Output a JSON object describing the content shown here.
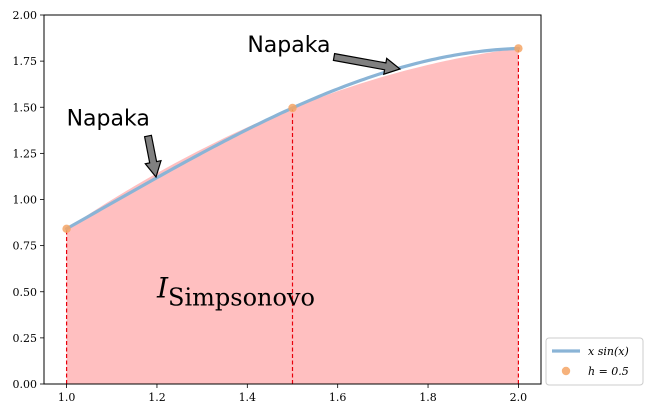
{
  "chart_data": {
    "type": "line",
    "xlim": [
      0.95,
      2.05
    ],
    "ylim": [
      0.0,
      2.0
    ],
    "x_ticks": [
      "1.0",
      "1.2",
      "1.4",
      "1.6",
      "1.8",
      "2.0"
    ],
    "x_tick_values": [
      1.0,
      1.2,
      1.4,
      1.6,
      1.8,
      2.0
    ],
    "y_ticks": [
      "0.00",
      "0.25",
      "0.50",
      "0.75",
      "1.00",
      "1.25",
      "1.50",
      "1.75",
      "2.00"
    ],
    "y_tick_values": [
      0.0,
      0.25,
      0.5,
      0.75,
      1.0,
      1.25,
      1.5,
      1.75,
      2.0
    ],
    "grid": false,
    "series": [
      {
        "name": "x sin(x)",
        "kind": "line",
        "color": "#8ab4d6",
        "x_range": [
          1.0,
          2.0
        ]
      },
      {
        "name": "h = 0.5",
        "kind": "scatter",
        "color": "#f5a565",
        "x": [
          1.0,
          1.5,
          2.0
        ],
        "y": [
          0.841,
          1.496,
          1.819
        ]
      }
    ],
    "simpson_fill_color": "#ffbfc0",
    "node_line_color": "#e8000b",
    "region_label": {
      "symbol": "I",
      "subscript": "Simpsonovo",
      "x": 1.2,
      "y": 0.47
    },
    "annotations": [
      {
        "text": "Napaka",
        "text_x": 1.0,
        "text_y": 1.4,
        "arrow_to_x": 1.2,
        "arrow_to_y": 1.11
      },
      {
        "text": "Napaka",
        "text_x": 1.4,
        "text_y": 1.8,
        "arrow_to_x": 1.75,
        "arrow_to_y": 1.7
      }
    ],
    "legend": {
      "placement": "lower-right outside",
      "entries": [
        {
          "label": "x sin(x)",
          "kind": "line"
        },
        {
          "label": "h = 0.5",
          "kind": "marker"
        }
      ]
    }
  }
}
